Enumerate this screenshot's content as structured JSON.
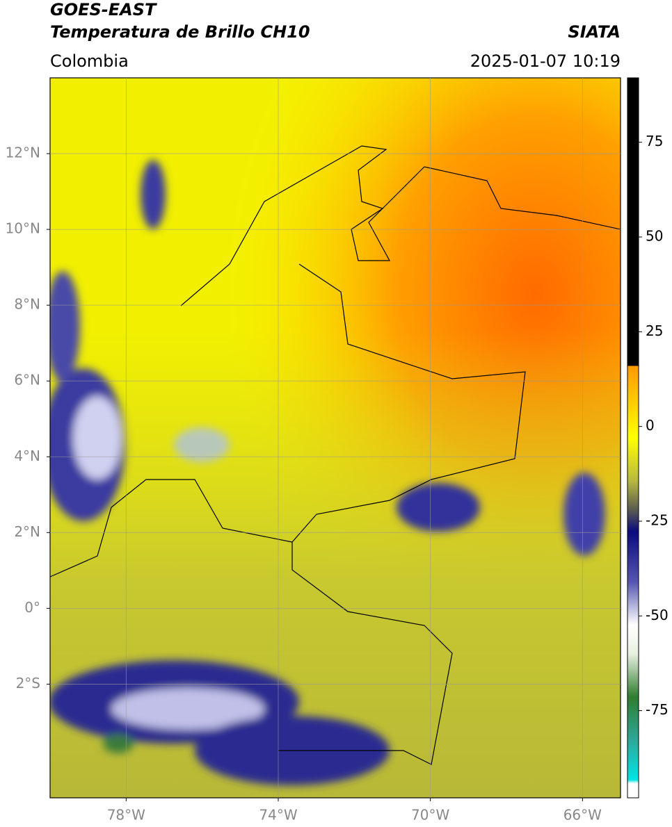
{
  "header": {
    "title": "GOES-EAST",
    "subtitle": "Temperatura de Brillo CH10",
    "source": "SIATA",
    "region": "Colombia",
    "datetime": "2025-01-07 10:19"
  },
  "map": {
    "lonlim": [
      -80,
      -65
    ],
    "latlim": [
      -5,
      14
    ],
    "lon_ticks": [
      {
        "value": -78,
        "label": "78°W"
      },
      {
        "value": -74,
        "label": "74°W"
      },
      {
        "value": -70,
        "label": "70°W"
      },
      {
        "value": -66,
        "label": "66°W"
      }
    ],
    "lat_ticks": [
      {
        "value": 12,
        "label": "12°N"
      },
      {
        "value": 10,
        "label": "10°N"
      },
      {
        "value": 8,
        "label": "8°N"
      },
      {
        "value": 6,
        "label": "6°N"
      },
      {
        "value": 4,
        "label": "4°N"
      },
      {
        "value": 2,
        "label": "2°N"
      },
      {
        "value": 0,
        "label": "0°"
      },
      {
        "value": -2,
        "label": "2°S"
      }
    ]
  },
  "colorbar": {
    "lim": [
      -98,
      92
    ],
    "ticks": [
      75,
      50,
      25,
      0,
      -25,
      -50,
      -75
    ]
  }
}
